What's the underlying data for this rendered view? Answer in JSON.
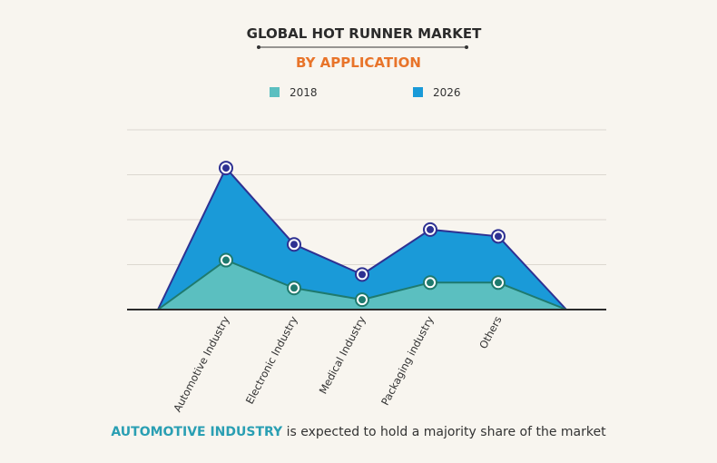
{
  "chart_data": {
    "type": "area",
    "title": "GLOBAL HOT RUNNER MARKET",
    "subtitle": "BY APPLICATION",
    "categories": [
      "Automotive Industry",
      "Electronic Industry",
      "Medical Industry",
      "Packaging industry",
      "Others"
    ],
    "series": [
      {
        "name": "2018",
        "color": "#5bbfc0",
        "line_color": "#1f7a6e",
        "values": [
          1.1,
          0.48,
          0.22,
          0.6,
          0.6
        ]
      },
      {
        "name": "2026",
        "color": "#1a9ad8",
        "line_color": "#2e3192",
        "values": [
          3.15,
          1.45,
          0.78,
          1.78,
          1.63
        ]
      }
    ],
    "ylim": [
      0,
      4
    ],
    "grid": true,
    "legend": "top-center",
    "y_ticks_shown": false
  },
  "footer": {
    "highlight": "AUTOMOTIVE INDUSTRY",
    "text": " is expected to hold a majority share of the market"
  }
}
